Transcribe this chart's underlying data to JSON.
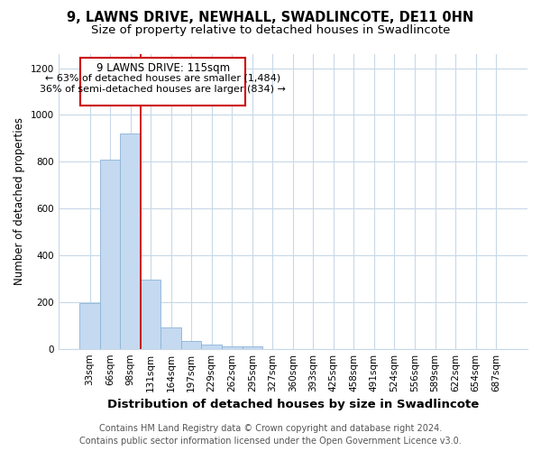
{
  "title": "9, LAWNS DRIVE, NEWHALL, SWADLINCOTE, DE11 0HN",
  "subtitle": "Size of property relative to detached houses in Swadlincote",
  "xlabel": "Distribution of detached houses by size in Swadlincote",
  "ylabel": "Number of detached properties",
  "footer_line1": "Contains HM Land Registry data © Crown copyright and database right 2024.",
  "footer_line2": "Contains public sector information licensed under the Open Government Licence v3.0.",
  "bar_labels": [
    "33sqm",
    "66sqm",
    "98sqm",
    "131sqm",
    "164sqm",
    "197sqm",
    "229sqm",
    "262sqm",
    "295sqm",
    "327sqm",
    "360sqm",
    "393sqm",
    "425sqm",
    "458sqm",
    "491sqm",
    "524sqm",
    "556sqm",
    "589sqm",
    "622sqm",
    "654sqm",
    "687sqm"
  ],
  "bar_values": [
    195,
    810,
    920,
    295,
    90,
    35,
    18,
    12,
    12,
    0,
    0,
    0,
    0,
    0,
    0,
    0,
    0,
    0,
    0,
    0,
    0
  ],
  "bar_color": "#c5d9f0",
  "bar_edge_color": "#8ab4d8",
  "red_line_x": 2.5,
  "red_line_color": "#cc0000",
  "annotation_title": "9 LAWNS DRIVE: 115sqm",
  "annotation_line1": "← 63% of detached houses are smaller (1,484)",
  "annotation_line2": "36% of semi-detached houses are larger (834) →",
  "annotation_box_color": "#ffffff",
  "annotation_box_edge_color": "#cc0000",
  "ylim": [
    0,
    1260
  ],
  "yticks": [
    0,
    200,
    400,
    600,
    800,
    1000,
    1200
  ],
  "background_color": "#ffffff",
  "grid_color": "#c8d8e8",
  "title_fontsize": 10.5,
  "subtitle_fontsize": 9.5,
  "xlabel_fontsize": 9.5,
  "ylabel_fontsize": 8.5,
  "tick_fontsize": 7.5,
  "footer_fontsize": 7.0,
  "annotation_fontsize": 8.5
}
